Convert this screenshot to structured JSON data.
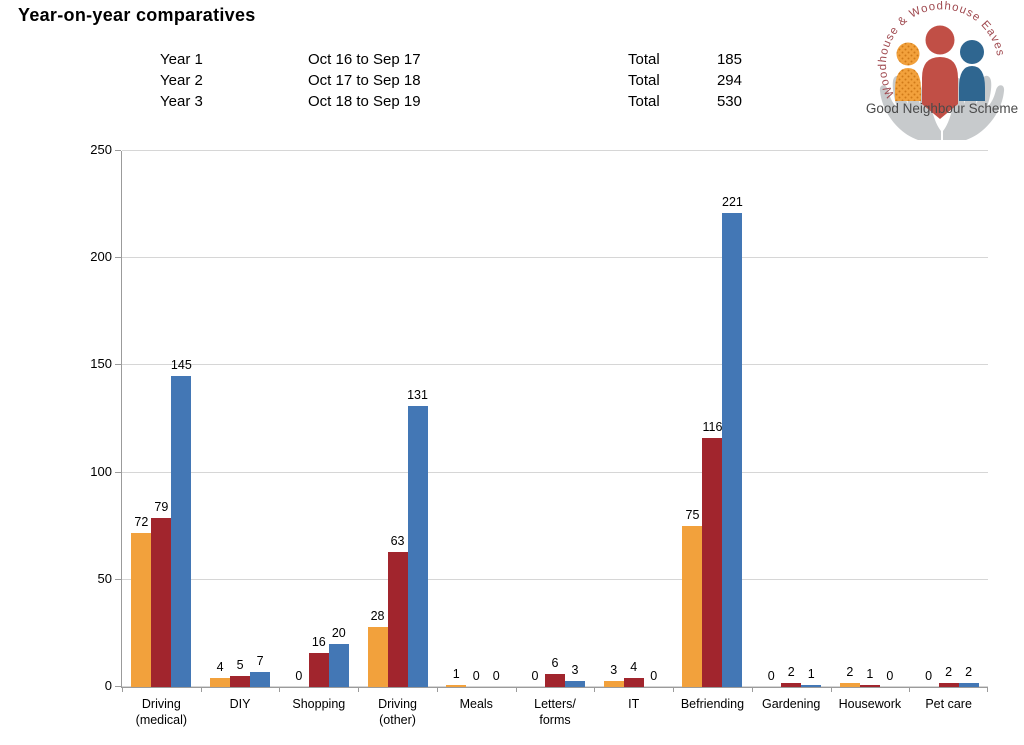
{
  "title": "Year-on-year comparatives",
  "header": {
    "rows": [
      {
        "year": "Year 1",
        "period": "Oct 16 to Sep 17",
        "total_label": "Total",
        "total": "185"
      },
      {
        "year": "Year 2",
        "period": "Oct 17 to Sep 18",
        "total_label": "Total",
        "total": "294"
      },
      {
        "year": "Year 3",
        "period": "Oct 18 to Sep 19",
        "total_label": "Total",
        "total": "530"
      }
    ]
  },
  "logo": {
    "arc_text": "Woodhouse & Woodhouse Eaves",
    "caption": "Good Neighbour Scheme",
    "colors": {
      "arc_text": "#a04a50",
      "caption": "#4a4a4a",
      "hands": "#c7cacc",
      "figure_orange": "#f2a13c",
      "figure_orange_dots": "#cf7a18",
      "figure_red": "#c14f46",
      "figure_blue": "#2f6690"
    }
  },
  "chart_data": {
    "type": "bar",
    "title": "",
    "xlabel": "",
    "ylabel": "",
    "categories": [
      "Driving\n(medical)",
      "DIY",
      "Shopping",
      "Driving\n(other)",
      "Meals",
      "Letters/\nforms",
      "IT",
      "Befriending",
      "Gardening",
      "Housework",
      "Pet care"
    ],
    "series": [
      {
        "name": "Year 1",
        "color": "#f2a13c",
        "values": [
          72,
          4,
          0,
          28,
          1,
          0,
          3,
          75,
          0,
          2,
          0
        ]
      },
      {
        "name": "Year 2",
        "color": "#a1252d",
        "values": [
          79,
          5,
          16,
          63,
          0,
          6,
          4,
          116,
          2,
          1,
          2
        ]
      },
      {
        "name": "Year 3",
        "color": "#4377b5",
        "values": [
          145,
          7,
          20,
          131,
          0,
          3,
          0,
          221,
          1,
          0,
          2
        ]
      }
    ],
    "ylim": [
      0,
      250
    ],
    "yticks": [
      0,
      50,
      100,
      150,
      200,
      250
    ],
    "grid": true,
    "legend_position": "none",
    "data_labels": true,
    "axis_color": "#9b9b9b",
    "gridline_color": "#d6d6d6"
  }
}
